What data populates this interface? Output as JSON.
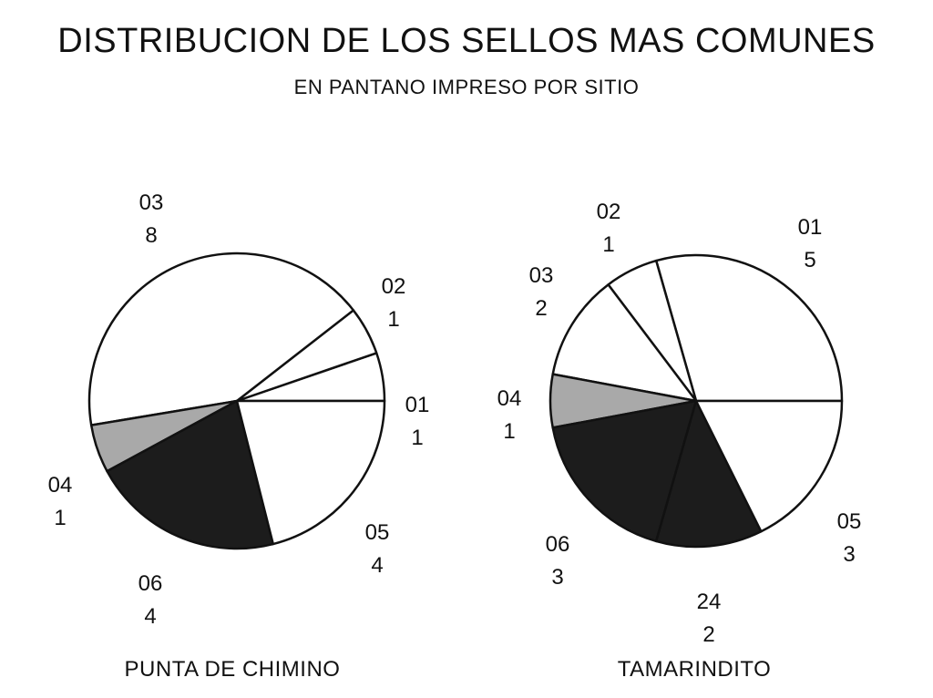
{
  "title": "DISTRIBUCION DE LOS SELLOS MAS COMUNES",
  "subtitle": "EN PANTANO IMPRESO POR SITIO",
  "chart_data": [
    {
      "type": "pie",
      "title": "PUNTA DE CHIMINO",
      "slices": [
        {
          "category": "01",
          "value": 1,
          "label": "1",
          "fill": "#ffffff"
        },
        {
          "category": "02",
          "value": 1,
          "label": "1",
          "fill": "#ffffff"
        },
        {
          "category": "03",
          "value": 8,
          "label": "8",
          "fill": "#ffffff"
        },
        {
          "category": "04",
          "value": 1,
          "label": "1",
          "fill": "#a9a9a9"
        },
        {
          "category": "06",
          "value": 4,
          "label": "4",
          "fill": "#1c1c1c"
        },
        {
          "category": "05",
          "value": 4,
          "label": "4",
          "fill": "#ffffff"
        }
      ],
      "start": "3 o'clock",
      "direction": "counterclockwise"
    },
    {
      "type": "pie",
      "title": "TAMARINDITO",
      "slices": [
        {
          "category": "01",
          "value": 5,
          "label": "5",
          "fill": "#ffffff"
        },
        {
          "category": "02",
          "value": 1,
          "label": "1",
          "fill": "#ffffff"
        },
        {
          "category": "03",
          "value": 2,
          "label": "2",
          "fill": "#ffffff"
        },
        {
          "category": "04",
          "value": 1,
          "label": "1",
          "fill": "#a9a9a9"
        },
        {
          "category": "06",
          "value": 3,
          "label": "3",
          "fill": "#1c1c1c"
        },
        {
          "category": "24",
          "value": 2,
          "label": "2",
          "fill": "#1c1c1c"
        },
        {
          "category": "05",
          "value": 3,
          "label": "3",
          "fill": "#ffffff"
        }
      ],
      "start": "3 o'clock",
      "direction": "counterclockwise"
    }
  ]
}
